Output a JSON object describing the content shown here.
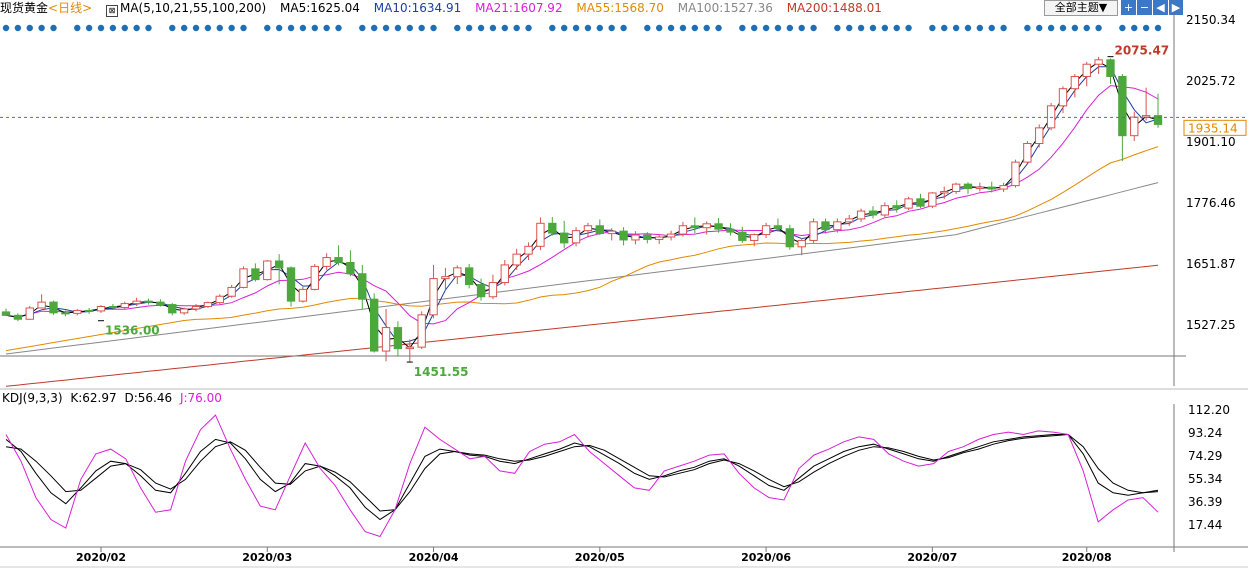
{
  "header": {
    "symbol": "现货黄金",
    "period": "<日线>",
    "ma_label": "MA(5,10,21,55,100,200)",
    "ma_values": [
      {
        "text": "MA5:1625.04",
        "color": "#000000"
      },
      {
        "text": "MA10:1634.91",
        "color": "#1f3f9f"
      },
      {
        "text": "MA21:1607.92",
        "color": "#d820d8"
      },
      {
        "text": "MA55:1568.70",
        "color": "#e08a00"
      },
      {
        "text": "MA100:1527.36",
        "color": "#888888"
      },
      {
        "text": "MA200:1488.01",
        "color": "#c0392b"
      }
    ],
    "theme_button": "全部主题▼",
    "nav_icons": [
      "plus-icon",
      "minus-icon",
      "left-arrow-icon",
      "right-arrow-icon"
    ]
  },
  "kdj_header": {
    "label": "KDJ(9,3,3)",
    "k": "K:62.97",
    "d": "D:56.46",
    "j": "J:76.00"
  },
  "colors": {
    "up": "#d9534f",
    "down": "#4ca83c",
    "ma5": "#000000",
    "ma21": "#d820d8",
    "ma55": "#e08a00",
    "ma100": "#888888",
    "ma200": "#c0392b",
    "k": "#000000",
    "d": "#000000",
    "j": "#d820d8",
    "dots": "#1f6fb6",
    "crosshair": "#2a7fb8"
  },
  "chart_data": [
    {
      "type": "candlestick",
      "title": "现货黄金 <日线>",
      "y_ticks": [
        2150.34,
        2025.72,
        1901.1,
        1776.46,
        1651.87,
        1527.25
      ],
      "ylim": [
        1400.0,
        2150.34
      ],
      "annotations": [
        {
          "text": "2075.47",
          "value": 2075.47,
          "kind": "high"
        },
        {
          "text": "1536.00",
          "value": 1536.0,
          "kind": "low"
        },
        {
          "text": "1451.55",
          "value": 1451.55,
          "kind": "low"
        }
      ],
      "last_price": "1935.14",
      "candles": [
        [
          1554,
          1561,
          1546,
          1547
        ],
        [
          1547,
          1551,
          1535,
          1539
        ],
        [
          1539,
          1566,
          1538,
          1562
        ],
        [
          1562,
          1590,
          1561,
          1574
        ],
        [
          1574,
          1577,
          1548,
          1552
        ],
        [
          1552,
          1557,
          1545,
          1551
        ],
        [
          1551,
          1560,
          1547,
          1557
        ],
        [
          1557,
          1562,
          1550,
          1556
        ],
        [
          1556,
          1568,
          1552,
          1565
        ],
        [
          1565,
          1570,
          1558,
          1563
        ],
        [
          1563,
          1575,
          1560,
          1571
        ],
        [
          1571,
          1583,
          1566,
          1576
        ],
        [
          1576,
          1581,
          1569,
          1574
        ],
        [
          1574,
          1580,
          1565,
          1569
        ],
        [
          1569,
          1572,
          1547,
          1552
        ],
        [
          1552,
          1563,
          1548,
          1560
        ],
        [
          1560,
          1570,
          1555,
          1565
        ],
        [
          1565,
          1575,
          1562,
          1573
        ],
        [
          1573,
          1590,
          1570,
          1586
        ],
        [
          1586,
          1609,
          1583,
          1604
        ],
        [
          1604,
          1647,
          1602,
          1642
        ],
        [
          1642,
          1653,
          1616,
          1620
        ],
        [
          1620,
          1660,
          1618,
          1658
        ],
        [
          1658,
          1672,
          1610,
          1644
        ],
        [
          1644,
          1647,
          1565,
          1576
        ],
        [
          1576,
          1605,
          1573,
          1600
        ],
        [
          1600,
          1652,
          1598,
          1647
        ],
        [
          1647,
          1674,
          1640,
          1665
        ],
        [
          1665,
          1690,
          1649,
          1655
        ],
        [
          1655,
          1680,
          1627,
          1632
        ],
        [
          1632,
          1650,
          1560,
          1580
        ],
        [
          1580,
          1592,
          1471,
          1474
        ],
        [
          1474,
          1560,
          1453,
          1522
        ],
        [
          1522,
          1535,
          1463,
          1479
        ],
        [
          1479,
          1498,
          1451,
          1482
        ],
        [
          1482,
          1555,
          1478,
          1548
        ],
        [
          1548,
          1650,
          1541,
          1622
        ],
        [
          1622,
          1644,
          1598,
          1626
        ],
        [
          1626,
          1649,
          1611,
          1644
        ],
        [
          1644,
          1652,
          1602,
          1610
        ],
        [
          1610,
          1622,
          1577,
          1585
        ],
        [
          1585,
          1630,
          1580,
          1614
        ],
        [
          1614,
          1660,
          1608,
          1650
        ],
        [
          1650,
          1683,
          1640,
          1672
        ],
        [
          1672,
          1696,
          1660,
          1688
        ],
        [
          1688,
          1747,
          1680,
          1735
        ],
        [
          1735,
          1748,
          1710,
          1715
        ],
        [
          1715,
          1740,
          1684,
          1695
        ],
        [
          1695,
          1727,
          1688,
          1720
        ],
        [
          1720,
          1736,
          1706,
          1730
        ],
        [
          1730,
          1743,
          1711,
          1714
        ],
        [
          1714,
          1725,
          1700,
          1719
        ],
        [
          1719,
          1727,
          1690,
          1701
        ],
        [
          1701,
          1719,
          1692,
          1711
        ],
        [
          1711,
          1717,
          1694,
          1702
        ],
        [
          1702,
          1712,
          1693,
          1707
        ],
        [
          1707,
          1720,
          1700,
          1713
        ],
        [
          1713,
          1738,
          1708,
          1730
        ],
        [
          1730,
          1747,
          1715,
          1726
        ],
        [
          1726,
          1739,
          1712,
          1734
        ],
        [
          1734,
          1746,
          1716,
          1723
        ],
        [
          1723,
          1735,
          1710,
          1717
        ],
        [
          1717,
          1728,
          1695,
          1700
        ],
        [
          1700,
          1714,
          1688,
          1712
        ],
        [
          1712,
          1736,
          1705,
          1730
        ],
        [
          1730,
          1745,
          1718,
          1724
        ],
        [
          1724,
          1732,
          1681,
          1687
        ],
        [
          1687,
          1705,
          1670,
          1700
        ],
        [
          1700,
          1745,
          1695,
          1738
        ],
        [
          1738,
          1745,
          1714,
          1722
        ],
        [
          1722,
          1745,
          1716,
          1738
        ],
        [
          1738,
          1752,
          1730,
          1744
        ],
        [
          1744,
          1765,
          1738,
          1760
        ],
        [
          1760,
          1770,
          1745,
          1752
        ],
        [
          1752,
          1778,
          1748,
          1771
        ],
        [
          1771,
          1782,
          1757,
          1766
        ],
        [
          1766,
          1789,
          1762,
          1785
        ],
        [
          1785,
          1795,
          1766,
          1770
        ],
        [
          1770,
          1799,
          1766,
          1797
        ],
        [
          1797,
          1810,
          1785,
          1800
        ],
        [
          1800,
          1818,
          1795,
          1815
        ],
        [
          1815,
          1819,
          1795,
          1806
        ],
        [
          1806,
          1818,
          1800,
          1809
        ],
        [
          1809,
          1820,
          1798,
          1805
        ],
        [
          1805,
          1818,
          1799,
          1812
        ],
        [
          1812,
          1865,
          1808,
          1860
        ],
        [
          1860,
          1903,
          1857,
          1898
        ],
        [
          1898,
          1937,
          1890,
          1930
        ],
        [
          1930,
          1981,
          1925,
          1975
        ],
        [
          1975,
          2015,
          1960,
          2010
        ],
        [
          2010,
          2040,
          1992,
          2035
        ],
        [
          2035,
          2065,
          2015,
          2060
        ],
        [
          2060,
          2075,
          2040,
          2069
        ],
        [
          2069,
          2072,
          2020,
          2035
        ],
        [
          2035,
          2040,
          1862,
          1914
        ],
        [
          1914,
          1963,
          1903,
          1952
        ],
        [
          1952,
          2012,
          1945,
          1955
        ],
        [
          1955,
          2000,
          1930,
          1937
        ]
      ]
    },
    {
      "type": "line",
      "title": "KDJ(9,3,3)",
      "y_ticks": [
        112.2,
        93.24,
        74.29,
        55.34,
        36.39,
        17.44
      ],
      "ylim": [
        5,
        112.2
      ],
      "x_ticks": [
        "2020/02",
        "2020/03",
        "2020/04",
        "2020/05",
        "2020/06",
        "2020/07",
        "2020/08"
      ],
      "series": [
        {
          "name": "K",
          "values": [
            88,
            78,
            60,
            44,
            35,
            48,
            62,
            70,
            68,
            58,
            46,
            44,
            60,
            78,
            88,
            85,
            72,
            55,
            45,
            52,
            68,
            66,
            58,
            48,
            32,
            22,
            30,
            52,
            74,
            80,
            78,
            75,
            74,
            70,
            68,
            72,
            76,
            80,
            85,
            82,
            75,
            68,
            60,
            55,
            58,
            62,
            65,
            70,
            72,
            66,
            58,
            50,
            46,
            56,
            66,
            72,
            78,
            82,
            84,
            80,
            76,
            72,
            70,
            74,
            78,
            82,
            86,
            88,
            90,
            91,
            92,
            92,
            76,
            52,
            44,
            42,
            44,
            46
          ]
        },
        {
          "name": "D",
          "values": [
            82,
            80,
            70,
            58,
            45,
            46,
            56,
            66,
            68,
            63,
            52,
            47,
            55,
            70,
            82,
            86,
            79,
            65,
            52,
            51,
            62,
            66,
            61,
            53,
            41,
            29,
            30,
            45,
            64,
            76,
            78,
            76,
            75,
            72,
            70,
            71,
            74,
            78,
            82,
            83,
            79,
            72,
            65,
            58,
            57,
            60,
            63,
            68,
            71,
            68,
            62,
            55,
            49,
            53,
            61,
            68,
            74,
            79,
            82,
            81,
            78,
            74,
            71,
            73,
            77,
            80,
            84,
            87,
            89,
            90,
            91,
            92,
            82,
            64,
            52,
            46,
            44,
            45
          ]
        },
        {
          "name": "J",
          "values": [
            92,
            70,
            40,
            22,
            15,
            55,
            76,
            80,
            72,
            48,
            28,
            30,
            70,
            96,
            108,
            80,
            55,
            33,
            30,
            58,
            85,
            64,
            50,
            30,
            12,
            8,
            30,
            68,
            98,
            88,
            80,
            72,
            74,
            62,
            60,
            78,
            84,
            86,
            92,
            78,
            68,
            58,
            48,
            46,
            62,
            66,
            70,
            75,
            76,
            60,
            48,
            40,
            38,
            64,
            75,
            80,
            86,
            90,
            88,
            76,
            70,
            66,
            68,
            78,
            82,
            88,
            92,
            94,
            92,
            95,
            94,
            92,
            62,
            20,
            30,
            38,
            40,
            28
          ]
        }
      ]
    }
  ]
}
